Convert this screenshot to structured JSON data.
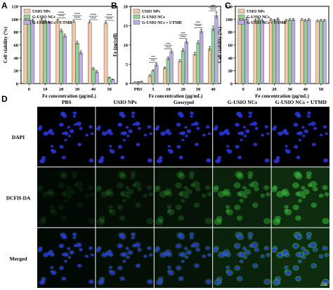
{
  "colors": {
    "usio": "#f5c8a8",
    "gusio": "#92d296",
    "gusio_utmd": "#bcaee0",
    "dapi": "#2a35d6",
    "dcfh": "#36b23a",
    "background": "#000000"
  },
  "chart_data": [
    {
      "panel": "A",
      "type": "bar",
      "xlabel": "Fe concentration (μg/mL)",
      "ylabel": "Cell viability (%)",
      "categories": [
        "0",
        "10",
        "20",
        "30",
        "40",
        "50"
      ],
      "ylim": [
        0,
        120
      ],
      "yticks": [
        "0",
        "20",
        "40",
        "60",
        "80",
        "100",
        "120"
      ],
      "legend_position": "top-left",
      "series": [
        {
          "name": "USIO NPs",
          "color_key": "usio",
          "values": [
            100,
            99,
            98,
            96,
            95,
            94
          ],
          "errors": [
            2,
            2,
            2,
            2,
            2,
            2
          ]
        },
        {
          "name": "G-USIO NCs",
          "color_key": "gusio",
          "values": [
            99,
            97,
            82,
            63,
            23,
            9
          ],
          "errors": [
            2,
            2,
            3,
            3,
            2,
            1
          ]
        },
        {
          "name": "G-USIO NCs + UTMD",
          "color_key": "gusio_utmd",
          "values": [
            98,
            95,
            74,
            48,
            18,
            6
          ],
          "errors": [
            2,
            2,
            3,
            3,
            2,
            1
          ]
        }
      ],
      "annotations": [
        "****",
        "****",
        "****",
        "****",
        "****",
        "****",
        "****",
        "****"
      ]
    },
    {
      "panel": "B",
      "type": "bar",
      "xlabel": "Fe concentration (μg/mL)",
      "ylabel": "Fe (pg/cell)",
      "categories": [
        "PBS",
        "5",
        "10",
        "20",
        "30",
        "40"
      ],
      "ylim": [
        0,
        20
      ],
      "yticks": [
        "0",
        "5",
        "10",
        "15",
        "20"
      ],
      "legend_position": "top-left",
      "series": [
        {
          "name": "USIO NPs",
          "color_key": "usio",
          "values": [
            0.3,
            2.0,
            4.0,
            5.8,
            7.6,
            9.0
          ],
          "errors": [
            0.1,
            0.3,
            0.3,
            0.4,
            0.5,
            0.6
          ]
        },
        {
          "name": "G-USIO NCs",
          "color_key": "gusio",
          "values": [
            0.4,
            3.3,
            6.5,
            8.6,
            10.6,
            14.2
          ],
          "errors": [
            0.1,
            0.3,
            0.4,
            0.5,
            0.5,
            0.7
          ]
        },
        {
          "name": "G-USIO NCs + UTMD",
          "color_key": "gusio_utmd",
          "values": [
            0.5,
            4.8,
            8.2,
            10.8,
            13.5,
            17.6
          ],
          "errors": [
            0.1,
            0.4,
            0.4,
            0.5,
            0.6,
            0.8
          ]
        }
      ],
      "annotations": [
        "***",
        "***",
        "****",
        "***",
        "****",
        "***",
        "****",
        "***",
        "****",
        "***"
      ]
    },
    {
      "panel": "C",
      "type": "bar",
      "xlabel": "Fe concentration (μg/mL)",
      "ylabel": "Cell viability (%)",
      "categories": [
        "0",
        "10",
        "20",
        "30",
        "40",
        "50"
      ],
      "ylim": [
        0,
        120
      ],
      "yticks": [
        "0",
        "20",
        "40",
        "60",
        "80",
        "100",
        "120"
      ],
      "legend_position": "top-left",
      "series": [
        {
          "name": "USIO NPs",
          "color_key": "usio",
          "values": [
            100,
            98,
            99,
            98,
            99,
            97
          ],
          "errors": [
            2,
            2,
            2,
            2,
            2,
            2
          ]
        },
        {
          "name": "G-USIO NCs",
          "color_key": "gusio",
          "values": [
            99,
            99,
            98,
            99,
            98,
            98
          ],
          "errors": [
            2,
            2,
            2,
            2,
            2,
            2
          ]
        },
        {
          "name": "G-USIO NCs + UTMD",
          "color_key": "gusio_utmd",
          "values": [
            100,
            98,
            100,
            99,
            99,
            98
          ],
          "errors": [
            2,
            2,
            2,
            2,
            2,
            2
          ]
        }
      ],
      "annotations": []
    }
  ],
  "panel_d": {
    "label": "D",
    "columns": [
      "PBS",
      "USIO NPs",
      "Gossypol",
      "G-USIO NCs",
      "G-USIO NCs + UTMD"
    ],
    "rows": [
      {
        "label": "DAPI",
        "channel": "dapi",
        "intensity": [
          0.0,
          0.0,
          0.0,
          0.0,
          0.0
        ]
      },
      {
        "label": "DCFH-DA",
        "channel": "dcfh",
        "intensity": [
          0.12,
          0.22,
          0.32,
          0.55,
          0.72
        ]
      },
      {
        "label": "Merged",
        "channel": "merged",
        "intensity": [
          0.12,
          0.22,
          0.32,
          0.55,
          0.72
        ]
      }
    ],
    "scalebar_text": "20 μm"
  }
}
